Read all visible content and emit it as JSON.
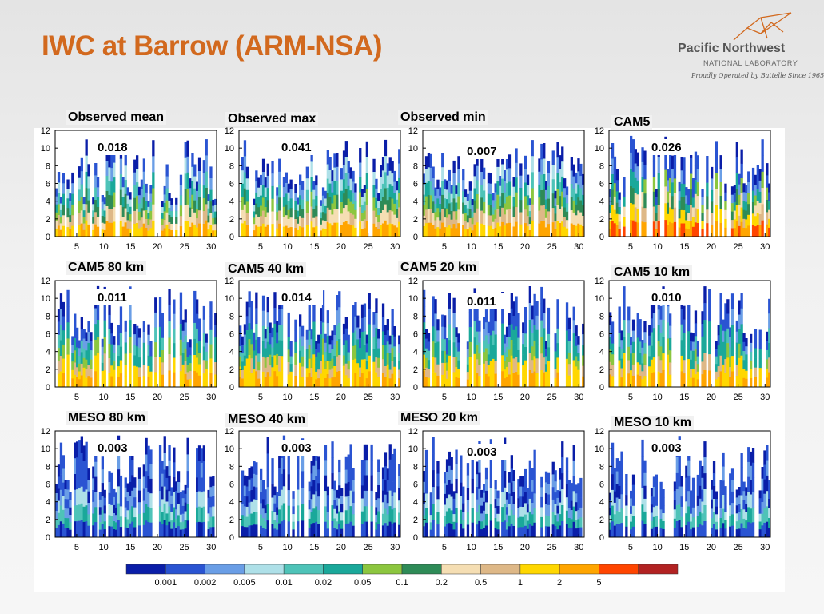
{
  "slide": {
    "title": "IWC at Barrow (ARM-NSA)"
  },
  "logo": {
    "name": "Pacific Northwest",
    "sub": "NATIONAL LABORATORY",
    "tagline": "Proudly Operated by Battelle Since 1965"
  },
  "chart_data": {
    "type": "heatmap",
    "grid": "3 rows × 4 columns",
    "x_ticks": [
      5,
      10,
      15,
      20,
      25,
      30
    ],
    "y_ticks": [
      0,
      2,
      4,
      6,
      8,
      10,
      12
    ],
    "xlim": [
      1,
      31
    ],
    "ylim": [
      0,
      12
    ],
    "colorbar": {
      "levels": [
        "0.001",
        "0.002",
        "0.005",
        "0.01",
        "0.02",
        "0.05",
        "0.1",
        "0.2",
        "0.5",
        "1",
        "2",
        "5"
      ],
      "colors": [
        "#0a1ea8",
        "#2a54d2",
        "#6a9ee6",
        "#aee0e8",
        "#4ec3b8",
        "#1aa89a",
        "#8cc63f",
        "#2e8b57",
        "#f5deb3",
        "#deb887",
        "#ffd700",
        "#ffa500",
        "#ff4500",
        "#b22222"
      ]
    },
    "panels": [
      {
        "label": "Observed mean",
        "value": "0.018"
      },
      {
        "label": "Observed max",
        "value": "0.041"
      },
      {
        "label": "Observed min",
        "value": "0.007"
      },
      {
        "label": "CAM5",
        "value": "0.026"
      },
      {
        "label": "CAM5 80 km",
        "value": "0.011"
      },
      {
        "label": "CAM5 40 km",
        "value": "0.014"
      },
      {
        "label": "CAM5 20 km",
        "value": "0.011"
      },
      {
        "label": "CAM5 10 km",
        "value": "0.010"
      },
      {
        "label": "MESO 80 km",
        "value": "0.003"
      },
      {
        "label": "MESO 40 km",
        "value": "0.003"
      },
      {
        "label": "MESO 20 km",
        "value": "0.003"
      },
      {
        "label": "MESO 10 km",
        "value": "0.003"
      }
    ]
  }
}
